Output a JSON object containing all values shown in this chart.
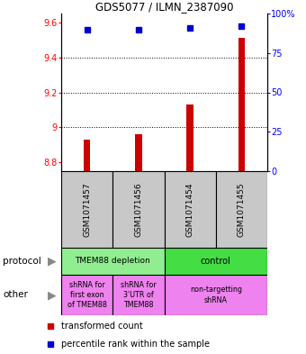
{
  "title": "GDS5077 / ILMN_2387090",
  "samples": [
    "GSM1071457",
    "GSM1071456",
    "GSM1071454",
    "GSM1071455"
  ],
  "red_values": [
    8.93,
    8.96,
    9.13,
    9.51
  ],
  "blue_values": [
    90,
    90,
    91,
    92
  ],
  "ylim_left": [
    8.75,
    9.65
  ],
  "ylim_right": [
    0,
    100
  ],
  "yticks_left": [
    8.8,
    9.0,
    9.2,
    9.4,
    9.6
  ],
  "yticks_right": [
    0,
    25,
    50,
    75,
    100
  ],
  "ytick_labels_left": [
    "8.8",
    "9",
    "9.2",
    "9.4",
    "9.6"
  ],
  "ytick_labels_right": [
    "0",
    "25",
    "50",
    "75",
    "100%"
  ],
  "gridlines": [
    9.0,
    9.2,
    9.4
  ],
  "protocol_labels": [
    "TMEM88 depletion",
    "control"
  ],
  "other_labels": [
    "shRNA for\nfirst exon\nof TMEM88",
    "shRNA for\n3'UTR of\nTMEM88",
    "non-targetting\nshRNA"
  ],
  "protocol_color_left": "#90ee90",
  "protocol_color_right": "#44dd44",
  "other_color": "#ee82ee",
  "sample_bg_color": "#c8c8c8",
  "bar_color": "#cc0000",
  "dot_color": "#0000cc",
  "legend_red": "transformed count",
  "legend_blue": "percentile rank within the sample",
  "bar_width": 0.13
}
